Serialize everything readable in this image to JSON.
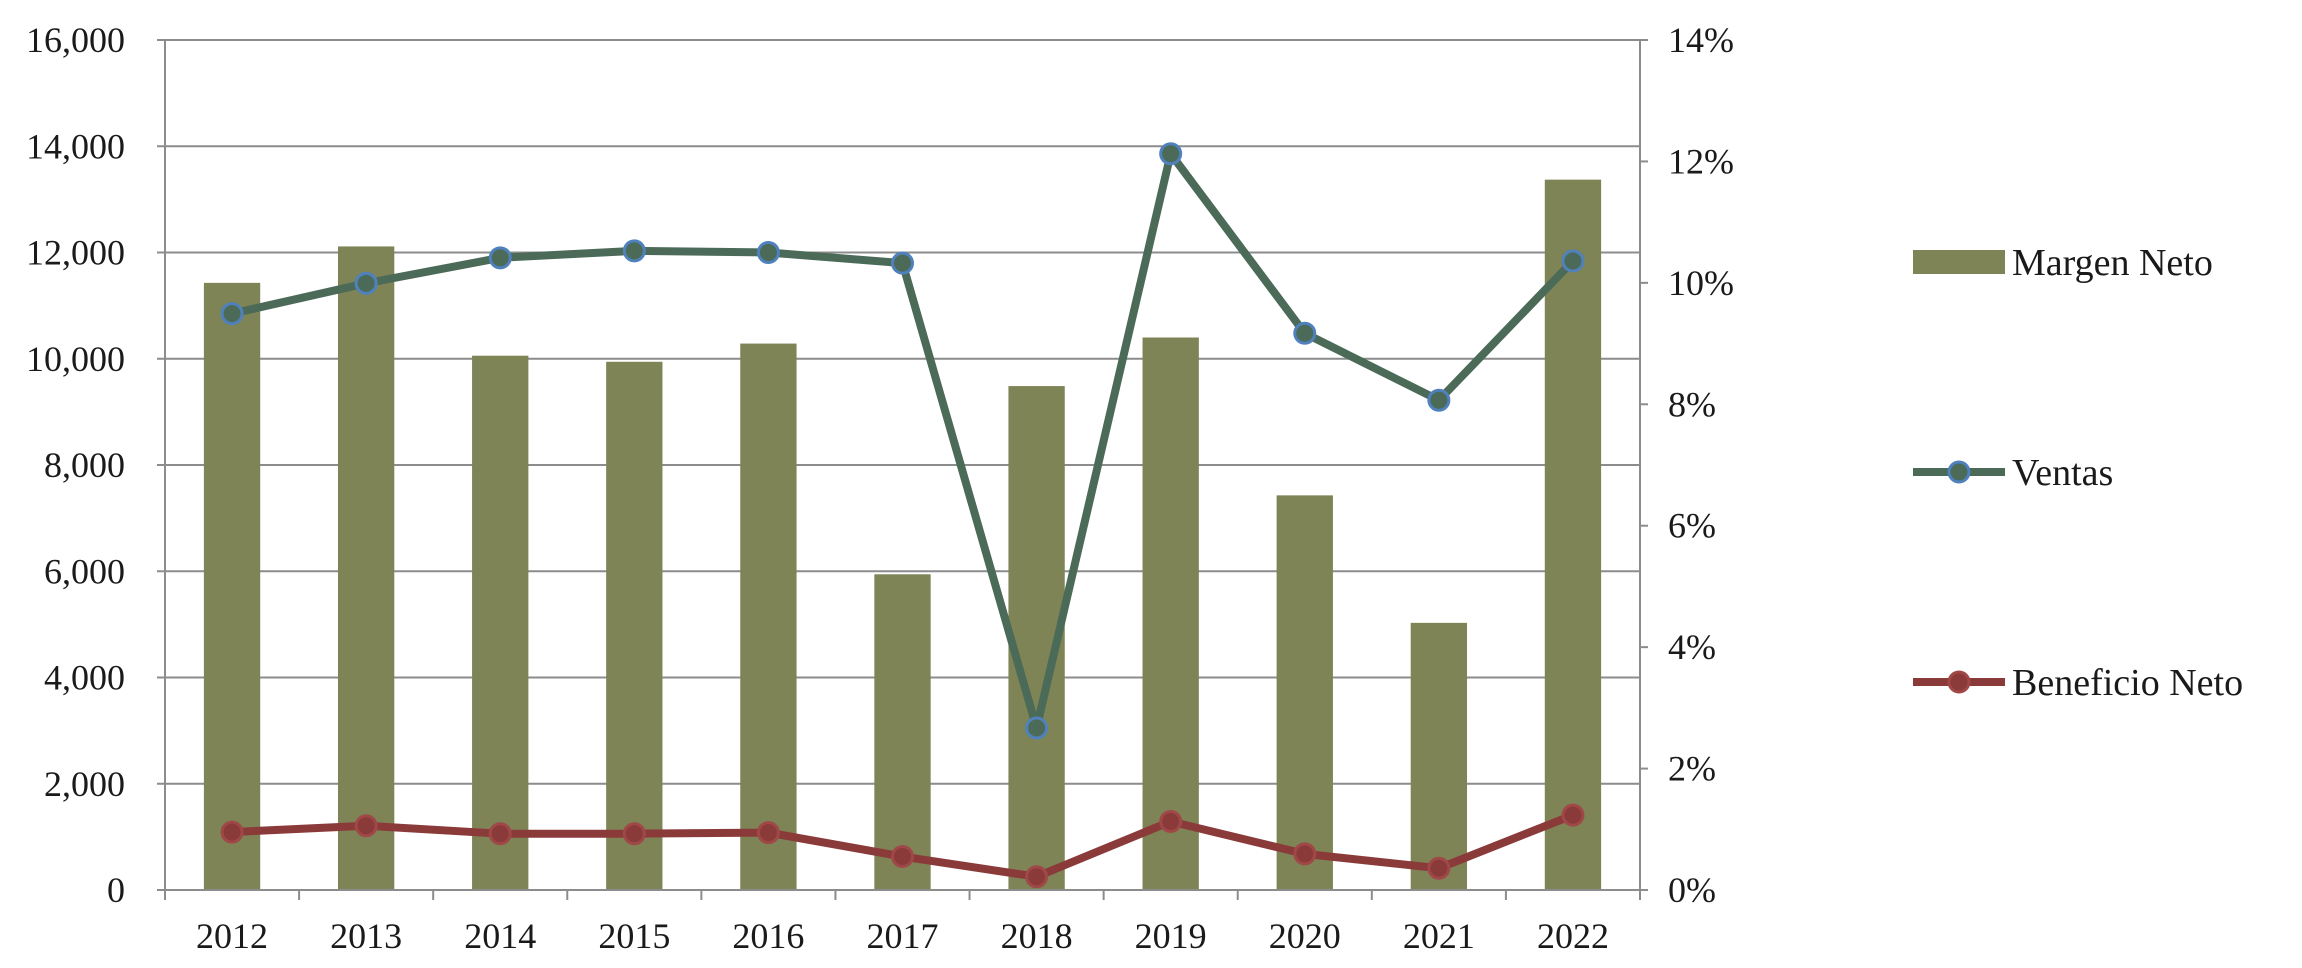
{
  "chart_data": {
    "type": "bar",
    "categories": [
      "2012",
      "2013",
      "2014",
      "2015",
      "2016",
      "2017",
      "2018",
      "2019",
      "2020",
      "2021",
      "2022"
    ],
    "series": [
      {
        "name": "Margen Neto",
        "type": "bar",
        "axis": "right",
        "color": "#7e8456",
        "values": [
          0.1,
          0.106,
          0.088,
          0.087,
          0.09,
          0.052,
          0.083,
          0.091,
          0.065,
          0.044,
          0.117
        ]
      },
      {
        "name": "Ventas",
        "type": "line",
        "axis": "left",
        "color": "#4c6a58",
        "marker_color": "#4f81bd",
        "values": [
          10850,
          11420,
          11900,
          12030,
          12000,
          11800,
          3050,
          13860,
          10480,
          9220,
          11840
        ]
      },
      {
        "name": "Beneficio Neto",
        "type": "line",
        "axis": "left",
        "color": "#8b3a3a",
        "marker_color": "#a04848",
        "values": [
          1090,
          1210,
          1060,
          1060,
          1080,
          630,
          250,
          1290,
          680,
          410,
          1410
        ]
      }
    ],
    "y_left": {
      "ylim": [
        0,
        16000
      ],
      "ticks": [
        "0",
        "2,000",
        "4,000",
        "6,000",
        "8,000",
        "10,000",
        "12,000",
        "14,000",
        "16,000"
      ]
    },
    "y_right": {
      "ylim": [
        0,
        0.14
      ],
      "ticks": [
        "0%",
        "2%",
        "4%",
        "6%",
        "8%",
        "10%",
        "12%",
        "14%"
      ]
    },
    "grid": true,
    "legend_position": "right"
  }
}
